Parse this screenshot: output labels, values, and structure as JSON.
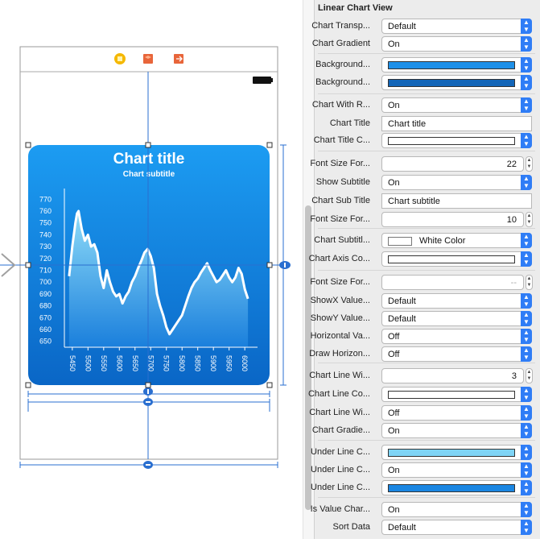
{
  "chart_data": {
    "type": "area",
    "title": "Chart title",
    "subtitle": "Chart subtitle",
    "x_ticks": [
      5450,
      5500,
      5550,
      5600,
      5650,
      5700,
      5750,
      5800,
      5850,
      5900,
      5950,
      6000
    ],
    "y_ticks": [
      650,
      660,
      670,
      680,
      690,
      700,
      710,
      720,
      730,
      740,
      750,
      760,
      770
    ],
    "xlim": [
      5435,
      6015
    ],
    "ylim": [
      645,
      775
    ],
    "x": [
      5440,
      5450,
      5460,
      5465,
      5470,
      5480,
      5490,
      5500,
      5510,
      5520,
      5530,
      5540,
      5550,
      5560,
      5570,
      5580,
      5590,
      5600,
      5610,
      5620,
      5630,
      5640,
      5650,
      5660,
      5670,
      5680,
      5690,
      5700,
      5710,
      5720,
      5730,
      5740,
      5750,
      5760,
      5770,
      5780,
      5790,
      5800,
      5810,
      5820,
      5830,
      5840,
      5850,
      5860,
      5870,
      5880,
      5890,
      5900,
      5910,
      5920,
      5930,
      5940,
      5950,
      5960,
      5970,
      5980,
      5990,
      6000,
      6010
    ],
    "y": [
      705,
      730,
      750,
      758,
      760,
      745,
      735,
      740,
      730,
      732,
      725,
      705,
      695,
      710,
      700,
      692,
      688,
      690,
      682,
      688,
      692,
      700,
      705,
      712,
      718,
      725,
      728,
      722,
      712,
      690,
      680,
      672,
      662,
      656,
      660,
      664,
      668,
      672,
      680,
      688,
      695,
      700,
      703,
      708,
      712,
      716,
      710,
      705,
      700,
      702,
      706,
      710,
      704,
      700,
      704,
      712,
      707,
      694,
      686
    ]
  },
  "panel": {
    "title": "Linear Chart View",
    "rows": [
      {
        "label": "Chart Transp...",
        "type": "select",
        "value": "Default"
      },
      {
        "label": "Chart Gradient",
        "type": "select",
        "value": "On"
      },
      {
        "label": "Background...",
        "type": "color",
        "color": "#1e90e8"
      },
      {
        "label": "Background...",
        "type": "color",
        "color": "#1265b8"
      },
      {
        "label": "Chart With R...",
        "type": "select",
        "value": "On"
      },
      {
        "label": "Chart Title",
        "type": "text",
        "value": "Chart title"
      },
      {
        "label": "Chart Title C...",
        "type": "color",
        "color": "#ffffff"
      },
      {
        "label": "Font Size For...",
        "type": "number",
        "value": "22"
      },
      {
        "label": "Show Subtitle",
        "type": "select",
        "value": "On"
      },
      {
        "label": "Chart Sub Title",
        "type": "text",
        "value": "Chart subtitle"
      },
      {
        "label": "Font Size For...",
        "type": "number",
        "value": "10"
      },
      {
        "label": "Chart Subtitl...",
        "type": "colorname",
        "value": "White Color",
        "color": "#ffffff"
      },
      {
        "label": "Chart Axis Co...",
        "type": "color",
        "color": "#ffffff"
      },
      {
        "label": "Font Size For...",
        "type": "number",
        "value": "--"
      },
      {
        "label": "ShowX Value...",
        "type": "select",
        "value": "Default"
      },
      {
        "label": "ShowY Value...",
        "type": "select",
        "value": "Default"
      },
      {
        "label": "Horizontal Va...",
        "type": "select",
        "value": "Off"
      },
      {
        "label": "Draw Horizon...",
        "type": "select",
        "value": "Off"
      },
      {
        "label": "Chart Line Wi...",
        "type": "number",
        "value": "3"
      },
      {
        "label": "Chart Line Co...",
        "type": "color",
        "color": "#ffffff"
      },
      {
        "label": "Chart Line Wi...",
        "type": "select",
        "value": "Off"
      },
      {
        "label": "Chart Gradie...",
        "type": "select",
        "value": "On"
      },
      {
        "label": "Under Line C...",
        "type": "color",
        "color": "#7fd4f6"
      },
      {
        "label": "Under Line C...",
        "type": "select",
        "value": "On"
      },
      {
        "label": "Under Line C...",
        "type": "color",
        "color": "#1a86e2"
      },
      {
        "label": "Is Value Char...",
        "type": "select",
        "value": "On"
      },
      {
        "label": "Sort Data",
        "type": "select",
        "value": "Default"
      }
    ]
  }
}
